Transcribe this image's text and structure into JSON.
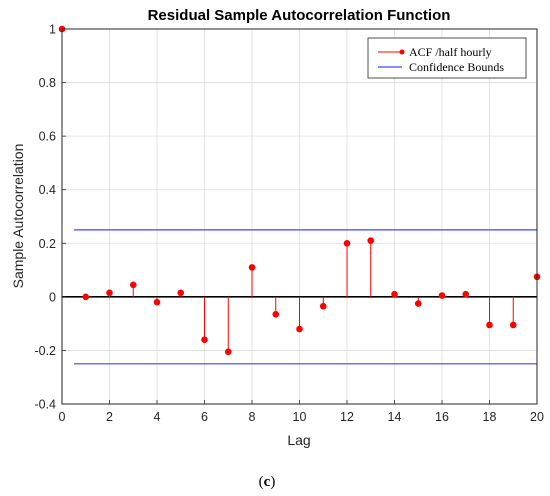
{
  "chart_data": {
    "type": "stem",
    "title": "Residual Sample Autocorrelation Function",
    "xlabel": "Lag",
    "ylabel": "Sample Autocorrelation",
    "xlim": [
      0,
      20
    ],
    "ylim": [
      -0.4,
      1
    ],
    "xticks": [
      0,
      2,
      4,
      6,
      8,
      10,
      12,
      14,
      16,
      18,
      20
    ],
    "yticks": [
      -0.4,
      -0.2,
      0,
      0.2,
      0.4,
      0.6,
      0.8,
      1
    ],
    "grid": true,
    "legend_position": "top-right",
    "series": [
      {
        "name": "ACF /half hourly",
        "color": "#ff0000",
        "x": [
          0,
          1,
          2,
          3,
          4,
          5,
          6,
          7,
          8,
          9,
          10,
          11,
          12,
          13,
          14,
          15,
          16,
          17,
          18,
          19,
          20
        ],
        "values": [
          1.0,
          0.0,
          0.015,
          0.045,
          -0.02,
          0.015,
          -0.16,
          -0.205,
          0.11,
          -0.065,
          -0.12,
          -0.035,
          0.2,
          0.21,
          0.01,
          -0.025,
          0.005,
          0.01,
          -0.105,
          -0.105,
          0.075
        ]
      }
    ],
    "confidence_bounds": {
      "name": "Confidence Bounds",
      "color": "#4040ff",
      "upper": 0.25,
      "lower": -0.25,
      "x_range": [
        0.5,
        20
      ]
    }
  },
  "caption": {
    "open": "(",
    "letter": "c",
    "close": ")"
  }
}
